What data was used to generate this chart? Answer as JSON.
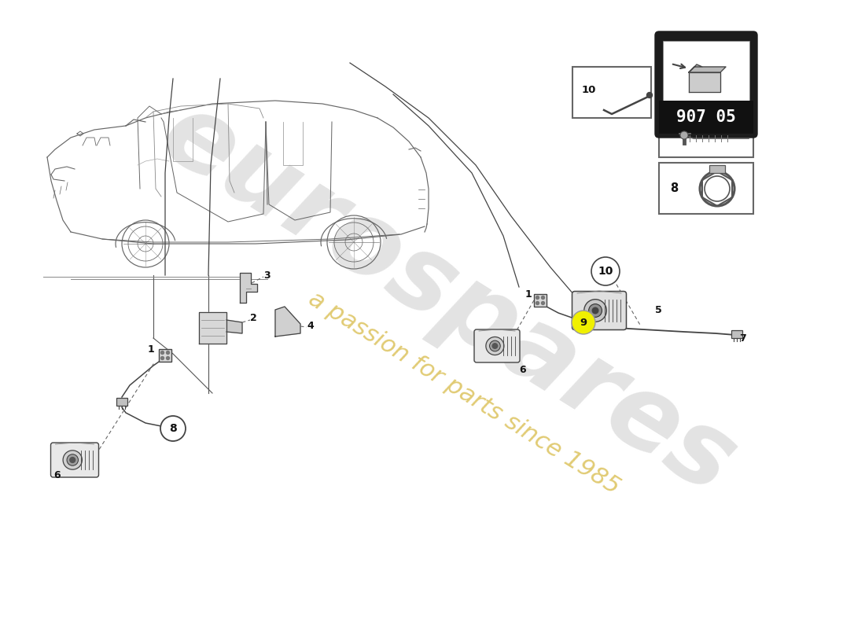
{
  "bg_color": "#ffffff",
  "watermark_text": "eurospares",
  "watermark_subtext": "a passion for parts since 1985",
  "watermark_gray_color": "#c8c8c8",
  "watermark_gray_alpha": 0.5,
  "watermark_yellow_color": "#c8a000",
  "watermark_yellow_alpha": 0.55,
  "part_number": "907 05",
  "line_color": "#333333",
  "part_line_color": "#555555",
  "label_fontsize": 9,
  "car_line_color": "#666666",
  "car_lw": 0.8
}
